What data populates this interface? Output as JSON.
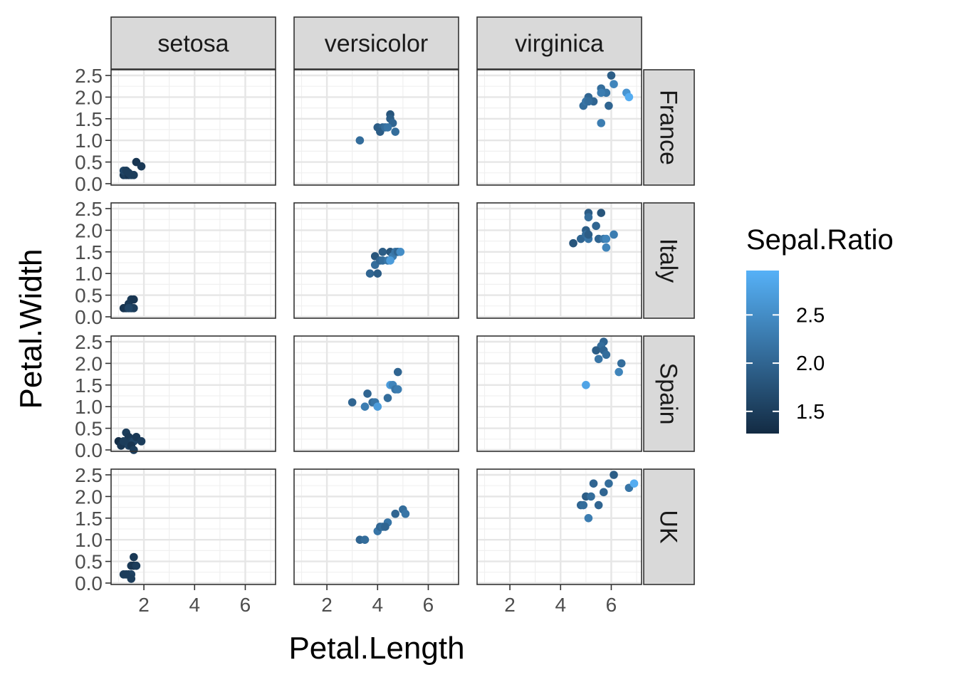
{
  "chart_data": {
    "type": "scatter",
    "title": "",
    "xlabel": "Petal.Length",
    "ylabel": "Petal.Width",
    "xlim": [
      0.705,
      7.195
    ],
    "ylim": [
      0,
      2.5
    ],
    "x_ticks": [
      2,
      4,
      6
    ],
    "y_ticks": [
      "0.0",
      "0.5",
      "1.0",
      "1.5",
      "2.0",
      "2.5"
    ],
    "grid": true,
    "facet_columns": [
      "setosa",
      "versicolor",
      "virginica"
    ],
    "facet_rows": [
      "France",
      "Italy",
      "Spain",
      "UK"
    ],
    "legend": {
      "title": "Sepal.Ratio",
      "placement": "right",
      "ticks": [
        "2.5",
        "2.0",
        "1.5"
      ],
      "tick_values": [
        2.5,
        2.0,
        1.5
      ],
      "range": [
        1.27,
        2.96
      ],
      "color_low": "#132B43",
      "color_high": "#56B1F7"
    },
    "panels": [
      {
        "row": "France",
        "col": "setosa",
        "points": [
          {
            "x": 1.2,
            "y": 0.2,
            "c": 1.45
          },
          {
            "x": 1.3,
            "y": 0.2,
            "c": 1.5
          },
          {
            "x": 1.4,
            "y": 0.2,
            "c": 1.4
          },
          {
            "x": 1.5,
            "y": 0.2,
            "c": 1.55
          },
          {
            "x": 1.6,
            "y": 0.2,
            "c": 1.5
          },
          {
            "x": 1.2,
            "y": 0.3,
            "c": 1.6
          },
          {
            "x": 1.3,
            "y": 0.3,
            "c": 1.5
          },
          {
            "x": 1.7,
            "y": 0.5,
            "c": 1.4
          },
          {
            "x": 1.9,
            "y": 0.4,
            "c": 1.45
          },
          {
            "x": 1.4,
            "y": 0.25,
            "c": 1.5
          }
        ]
      },
      {
        "row": "France",
        "col": "versicolor",
        "points": [
          {
            "x": 3.3,
            "y": 1.0,
            "c": 2.1
          },
          {
            "x": 4.0,
            "y": 1.3,
            "c": 1.9
          },
          {
            "x": 4.2,
            "y": 1.3,
            "c": 2.0
          },
          {
            "x": 4.1,
            "y": 1.2,
            "c": 1.9
          },
          {
            "x": 4.3,
            "y": 1.3,
            "c": 2.1
          },
          {
            "x": 4.5,
            "y": 1.6,
            "c": 1.8
          },
          {
            "x": 4.5,
            "y": 1.5,
            "c": 1.9
          },
          {
            "x": 4.6,
            "y": 1.4,
            "c": 2.0
          },
          {
            "x": 4.7,
            "y": 1.2,
            "c": 2.1
          },
          {
            "x": 4.4,
            "y": 1.3,
            "c": 2.2
          }
        ]
      },
      {
        "row": "France",
        "col": "virginica",
        "points": [
          {
            "x": 6.0,
            "y": 2.5,
            "c": 1.9
          },
          {
            "x": 5.1,
            "y": 2.0,
            "c": 2.0
          },
          {
            "x": 5.6,
            "y": 2.2,
            "c": 2.1
          },
          {
            "x": 5.8,
            "y": 2.1,
            "c": 2.2
          },
          {
            "x": 6.1,
            "y": 2.3,
            "c": 2.4
          },
          {
            "x": 6.6,
            "y": 2.1,
            "c": 2.6
          },
          {
            "x": 6.7,
            "y": 2.0,
            "c": 2.9
          },
          {
            "x": 4.9,
            "y": 1.8,
            "c": 2.1
          },
          {
            "x": 5.0,
            "y": 1.9,
            "c": 2.2
          },
          {
            "x": 5.3,
            "y": 1.9,
            "c": 2.0
          },
          {
            "x": 5.6,
            "y": 2.1,
            "c": 2.3
          },
          {
            "x": 5.9,
            "y": 1.8,
            "c": 2.0
          },
          {
            "x": 5.6,
            "y": 1.4,
            "c": 2.3
          },
          {
            "x": 5.1,
            "y": 1.9,
            "c": 2.1
          }
        ]
      },
      {
        "row": "Italy",
        "col": "setosa",
        "points": [
          {
            "x": 1.3,
            "y": 0.2,
            "c": 1.5
          },
          {
            "x": 1.4,
            "y": 0.3,
            "c": 1.45
          },
          {
            "x": 1.5,
            "y": 0.4,
            "c": 1.45
          },
          {
            "x": 1.5,
            "y": 0.2,
            "c": 1.55
          },
          {
            "x": 1.6,
            "y": 0.2,
            "c": 1.5
          },
          {
            "x": 1.6,
            "y": 0.4,
            "c": 1.4
          },
          {
            "x": 1.2,
            "y": 0.2,
            "c": 1.4
          },
          {
            "x": 1.4,
            "y": 0.2,
            "c": 1.6
          }
        ]
      },
      {
        "row": "Italy",
        "col": "versicolor",
        "points": [
          {
            "x": 3.7,
            "y": 1.0,
            "c": 2.0
          },
          {
            "x": 4.0,
            "y": 1.0,
            "c": 1.9
          },
          {
            "x": 3.9,
            "y": 1.2,
            "c": 2.1
          },
          {
            "x": 3.9,
            "y": 1.4,
            "c": 1.8
          },
          {
            "x": 4.1,
            "y": 1.3,
            "c": 2.0
          },
          {
            "x": 4.2,
            "y": 1.3,
            "c": 2.1
          },
          {
            "x": 4.2,
            "y": 1.5,
            "c": 1.9
          },
          {
            "x": 4.4,
            "y": 1.3,
            "c": 2.2
          },
          {
            "x": 4.5,
            "y": 1.5,
            "c": 1.8
          },
          {
            "x": 4.6,
            "y": 1.4,
            "c": 2.3
          },
          {
            "x": 4.7,
            "y": 1.5,
            "c": 2.2
          },
          {
            "x": 4.8,
            "y": 1.5,
            "c": 2.0
          },
          {
            "x": 4.9,
            "y": 1.5,
            "c": 2.5
          },
          {
            "x": 4.5,
            "y": 1.3,
            "c": 2.7
          }
        ]
      },
      {
        "row": "Italy",
        "col": "virginica",
        "points": [
          {
            "x": 5.1,
            "y": 2.4,
            "c": 1.9
          },
          {
            "x": 5.6,
            "y": 2.4,
            "c": 1.8
          },
          {
            "x": 5.1,
            "y": 2.3,
            "c": 2.1
          },
          {
            "x": 5.4,
            "y": 2.1,
            "c": 2.0
          },
          {
            "x": 5.0,
            "y": 2.0,
            "c": 1.9
          },
          {
            "x": 4.5,
            "y": 1.7,
            "c": 1.8
          },
          {
            "x": 4.8,
            "y": 1.8,
            "c": 2.0
          },
          {
            "x": 5.0,
            "y": 1.9,
            "c": 2.1
          },
          {
            "x": 5.1,
            "y": 1.8,
            "c": 2.2
          },
          {
            "x": 5.5,
            "y": 1.8,
            "c": 2.0
          },
          {
            "x": 5.7,
            "y": 1.8,
            "c": 2.2
          },
          {
            "x": 5.8,
            "y": 1.8,
            "c": 2.4
          },
          {
            "x": 6.1,
            "y": 1.9,
            "c": 2.3
          },
          {
            "x": 5.8,
            "y": 1.6,
            "c": 2.4
          },
          {
            "x": 5.1,
            "y": 1.9,
            "c": 1.9
          }
        ]
      },
      {
        "row": "Spain",
        "col": "setosa",
        "points": [
          {
            "x": 1.0,
            "y": 0.2,
            "c": 1.3
          },
          {
            "x": 1.1,
            "y": 0.1,
            "c": 1.4
          },
          {
            "x": 1.3,
            "y": 0.4,
            "c": 1.5
          },
          {
            "x": 1.4,
            "y": 0.3,
            "c": 1.45
          },
          {
            "x": 1.4,
            "y": 0.1,
            "c": 1.55
          },
          {
            "x": 1.5,
            "y": 0.2,
            "c": 1.5
          },
          {
            "x": 1.6,
            "y": 0.2,
            "c": 1.6
          },
          {
            "x": 1.7,
            "y": 0.3,
            "c": 1.45
          },
          {
            "x": 1.9,
            "y": 0.2,
            "c": 1.5
          },
          {
            "x": 1.5,
            "y": 0.1,
            "c": 1.4
          },
          {
            "x": 1.6,
            "y": 0.0,
            "c": 1.5
          },
          {
            "x": 1.2,
            "y": 0.2,
            "c": 1.5
          }
        ]
      },
      {
        "row": "Spain",
        "col": "versicolor",
        "points": [
          {
            "x": 3.0,
            "y": 1.1,
            "c": 2.0
          },
          {
            "x": 3.5,
            "y": 1.0,
            "c": 2.3
          },
          {
            "x": 3.6,
            "y": 1.3,
            "c": 2.0
          },
          {
            "x": 3.8,
            "y": 1.1,
            "c": 2.1
          },
          {
            "x": 3.9,
            "y": 1.1,
            "c": 2.2
          },
          {
            "x": 4.0,
            "y": 1.0,
            "c": 2.7
          },
          {
            "x": 4.4,
            "y": 1.2,
            "c": 2.1
          },
          {
            "x": 4.5,
            "y": 1.5,
            "c": 2.7
          },
          {
            "x": 4.6,
            "y": 1.5,
            "c": 2.4
          },
          {
            "x": 4.7,
            "y": 1.4,
            "c": 2.2
          },
          {
            "x": 4.8,
            "y": 1.4,
            "c": 2.3
          },
          {
            "x": 4.8,
            "y": 1.8,
            "c": 2.0
          }
        ]
      },
      {
        "row": "Spain",
        "col": "virginica",
        "points": [
          {
            "x": 5.7,
            "y": 2.5,
            "c": 2.0
          },
          {
            "x": 5.6,
            "y": 2.4,
            "c": 2.1
          },
          {
            "x": 5.4,
            "y": 2.3,
            "c": 1.9
          },
          {
            "x": 5.7,
            "y": 2.3,
            "c": 2.0
          },
          {
            "x": 5.8,
            "y": 2.2,
            "c": 2.1
          },
          {
            "x": 5.5,
            "y": 2.1,
            "c": 2.2
          },
          {
            "x": 6.4,
            "y": 2.0,
            "c": 2.1
          },
          {
            "x": 6.3,
            "y": 1.8,
            "c": 2.4
          },
          {
            "x": 5.0,
            "y": 1.5,
            "c": 2.8
          }
        ]
      },
      {
        "row": "UK",
        "col": "setosa",
        "points": [
          {
            "x": 1.2,
            "y": 0.2,
            "c": 1.5
          },
          {
            "x": 1.4,
            "y": 0.2,
            "c": 1.45
          },
          {
            "x": 1.5,
            "y": 0.2,
            "c": 1.55
          },
          {
            "x": 1.5,
            "y": 0.1,
            "c": 1.5
          },
          {
            "x": 1.5,
            "y": 0.4,
            "c": 1.45
          },
          {
            "x": 1.6,
            "y": 0.4,
            "c": 1.4
          },
          {
            "x": 1.7,
            "y": 0.4,
            "c": 1.5
          },
          {
            "x": 1.6,
            "y": 0.6,
            "c": 1.45
          },
          {
            "x": 1.3,
            "y": 0.2,
            "c": 1.5
          }
        ]
      },
      {
        "row": "UK",
        "col": "versicolor",
        "points": [
          {
            "x": 3.3,
            "y": 1.0,
            "c": 2.0
          },
          {
            "x": 3.5,
            "y": 1.0,
            "c": 2.1
          },
          {
            "x": 4.0,
            "y": 1.2,
            "c": 2.2
          },
          {
            "x": 4.1,
            "y": 1.3,
            "c": 2.0
          },
          {
            "x": 4.2,
            "y": 1.3,
            "c": 2.1
          },
          {
            "x": 4.4,
            "y": 1.4,
            "c": 2.2
          },
          {
            "x": 4.7,
            "y": 1.6,
            "c": 2.0
          },
          {
            "x": 5.0,
            "y": 1.7,
            "c": 2.1
          },
          {
            "x": 5.1,
            "y": 1.6,
            "c": 2.2
          },
          {
            "x": 4.3,
            "y": 1.3,
            "c": 2.0
          }
        ]
      },
      {
        "row": "UK",
        "col": "virginica",
        "points": [
          {
            "x": 6.1,
            "y": 2.5,
            "c": 1.9
          },
          {
            "x": 5.3,
            "y": 2.3,
            "c": 2.0
          },
          {
            "x": 5.9,
            "y": 2.3,
            "c": 2.1
          },
          {
            "x": 6.7,
            "y": 2.2,
            "c": 2.2
          },
          {
            "x": 6.9,
            "y": 2.3,
            "c": 2.9
          },
          {
            "x": 5.7,
            "y": 2.1,
            "c": 2.0
          },
          {
            "x": 5.0,
            "y": 2.0,
            "c": 1.9
          },
          {
            "x": 5.2,
            "y": 2.0,
            "c": 2.1
          },
          {
            "x": 4.8,
            "y": 1.8,
            "c": 2.0
          },
          {
            "x": 4.9,
            "y": 1.8,
            "c": 2.1
          },
          {
            "x": 5.5,
            "y": 1.8,
            "c": 2.0
          },
          {
            "x": 5.1,
            "y": 1.5,
            "c": 2.3
          }
        ]
      }
    ]
  }
}
